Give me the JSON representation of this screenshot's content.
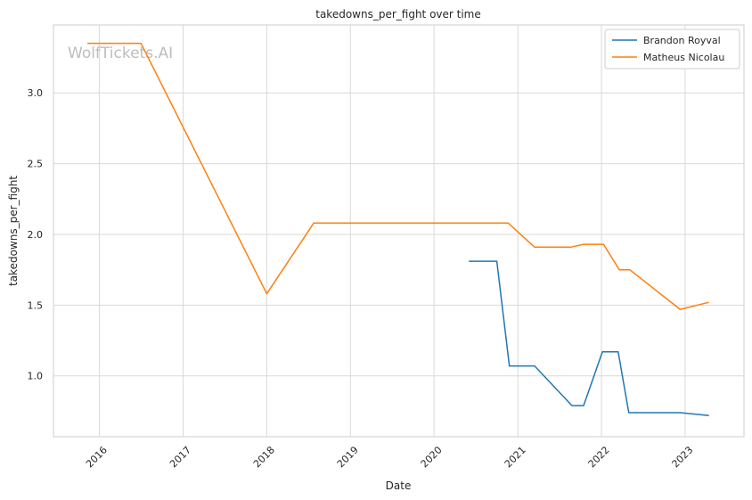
{
  "chart_data": {
    "type": "line",
    "title": "takedowns_per_fight over time",
    "xlabel": "Date",
    "ylabel": "takedowns_per_fight",
    "watermark": "WolfTickets.AI",
    "x_ticks": [
      "2016",
      "2017",
      "2018",
      "2019",
      "2020",
      "2021",
      "2022",
      "2023"
    ],
    "y_ticks": [
      "1.0",
      "1.5",
      "2.0",
      "2.5",
      "3.0"
    ],
    "xlim": [
      "2015-06-15",
      "2023-09-15"
    ],
    "ylim": [
      0.57,
      3.48
    ],
    "grid": true,
    "legend_position": "top-right",
    "series": [
      {
        "name": "Brandon Royval",
        "color": "#1f77b4",
        "points": [
          {
            "date": "2020-06-01",
            "value": 1.81
          },
          {
            "date": "2020-10-01",
            "value": 1.81
          },
          {
            "date": "2020-11-25",
            "value": 1.07
          },
          {
            "date": "2021-03-15",
            "value": 1.07
          },
          {
            "date": "2021-08-25",
            "value": 0.79
          },
          {
            "date": "2021-10-15",
            "value": 0.79
          },
          {
            "date": "2022-01-05",
            "value": 1.17
          },
          {
            "date": "2022-03-15",
            "value": 1.17
          },
          {
            "date": "2022-04-30",
            "value": 0.74
          },
          {
            "date": "2022-12-10",
            "value": 0.74
          },
          {
            "date": "2023-04-15",
            "value": 0.72
          }
        ]
      },
      {
        "name": "Matheus Nicolau",
        "color": "#ff7f0e",
        "points": [
          {
            "date": "2015-11-10",
            "value": 3.35
          },
          {
            "date": "2016-07-01",
            "value": 3.35
          },
          {
            "date": "2018-01-01",
            "value": 1.58
          },
          {
            "date": "2018-07-25",
            "value": 2.08
          },
          {
            "date": "2020-11-20",
            "value": 2.08
          },
          {
            "date": "2021-03-15",
            "value": 1.91
          },
          {
            "date": "2021-08-20",
            "value": 1.91
          },
          {
            "date": "2021-10-15",
            "value": 1.93
          },
          {
            "date": "2022-01-10",
            "value": 1.93
          },
          {
            "date": "2022-03-20",
            "value": 1.75
          },
          {
            "date": "2022-05-05",
            "value": 1.75
          },
          {
            "date": "2022-12-10",
            "value": 1.47
          },
          {
            "date": "2023-04-15",
            "value": 1.52
          }
        ]
      }
    ]
  }
}
